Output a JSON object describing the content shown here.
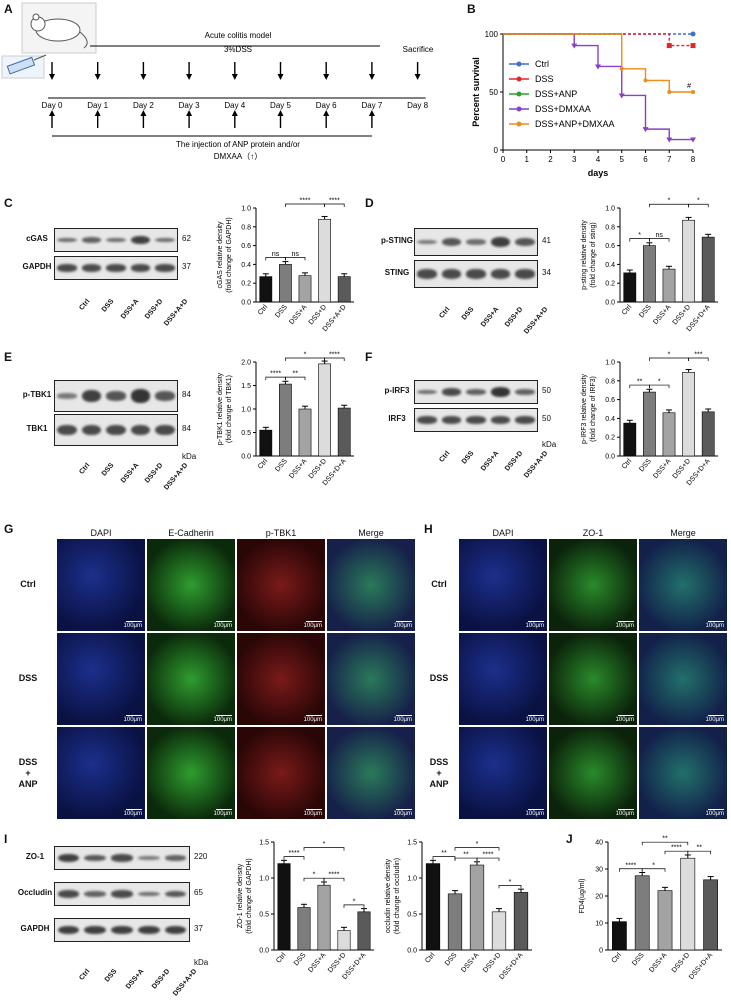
{
  "panelA": {
    "label": "A",
    "title": "Acute colitis model",
    "dss": "3%DSS",
    "sacrifice": "Sacrifice",
    "days": [
      "Day 0",
      "Day 1",
      "Day 2",
      "Day 3",
      "Day 4",
      "Day 5",
      "Day 6",
      "Day 7",
      "Day 8"
    ],
    "injection": "The injection of ANP protein and/or",
    "injection2": "DMXAA（↑）"
  },
  "panelB": {
    "label": "B"
  },
  "panelC": {
    "label": "C",
    "bands": [
      "cGAS",
      "GAPDH"
    ],
    "kda": [
      "62",
      "37"
    ],
    "lanes": [
      "Ctrl",
      "DSS",
      "DSS+A",
      "DSS+D",
      "DSS+A+D"
    ]
  },
  "panelD": {
    "label": "D",
    "bands": [
      "p-STING",
      "STING"
    ],
    "kda": [
      "41",
      "34"
    ],
    "lanes": [
      "Ctrl",
      "DSS",
      "DSS+A",
      "DSS+D",
      "DSS+A+D"
    ]
  },
  "panelE": {
    "label": "E",
    "bands": [
      "p-TBK1",
      "TBK1"
    ],
    "kda": [
      "84",
      "84"
    ],
    "unit": "kDa",
    "lanes": [
      "Ctrl",
      "DSS",
      "DSS+A",
      "DSS+D",
      "DSS+A+D"
    ]
  },
  "panelF": {
    "label": "F",
    "bands": [
      "p-IRF3",
      "IRF3"
    ],
    "kda": [
      "50",
      "50"
    ],
    "unit": "kDa",
    "lanes": [
      "Ctrl",
      "DSS",
      "DSS+A",
      "DSS+D",
      "DSS+A+D"
    ]
  },
  "panelG": {
    "label": "G",
    "cols": [
      "DAPI",
      "E-Cadherin",
      "p-TBK1",
      "Merge"
    ],
    "rows": [
      "Ctrl",
      "DSS",
      "DSS\n+\nANP"
    ],
    "scale": "100μm"
  },
  "panelH": {
    "label": "H",
    "cols": [
      "DAPI",
      "ZO-1",
      "Merge"
    ],
    "rows": [
      "Ctrl",
      "DSS",
      "DSS\n+\nANP"
    ],
    "scale": "100μm"
  },
  "panelI": {
    "label": "I",
    "bands": [
      "ZO-1",
      "Occludin",
      "GAPDH"
    ],
    "kda": [
      "220",
      "65",
      "37"
    ],
    "unit": "kDa",
    "lanes": [
      "Ctrl",
      "DSS",
      "DSS+A",
      "DSS+D",
      "DSS+A+D"
    ]
  },
  "panelJ": {
    "label": "J"
  },
  "chart_data": [
    {
      "id": "B",
      "type": "line",
      "xlabel": "days",
      "ylabel": "Percent survival",
      "xlim": [
        0,
        8
      ],
      "ylim": [
        0,
        100
      ],
      "xticks": [
        0,
        1,
        2,
        3,
        4,
        5,
        6,
        7,
        8
      ],
      "yticks": [
        0,
        50,
        100
      ],
      "annotation": "#",
      "series": [
        {
          "name": "Ctrl",
          "color": "#3b6fd1",
          "x": [
            0,
            8
          ],
          "y": [
            100,
            100
          ]
        },
        {
          "name": "DSS",
          "color": "#e0262c",
          "x": [
            0,
            6,
            7,
            8
          ],
          "y": [
            100,
            100,
            90,
            90
          ]
        },
        {
          "name": "DSS+ANP",
          "color": "#2aa02a",
          "x": [
            0,
            5
          ],
          "y": [
            100,
            100
          ]
        },
        {
          "name": "DSS+DMXAA",
          "color": "#8a3fc4",
          "x": [
            0,
            3,
            4,
            5,
            6,
            7,
            8
          ],
          "y": [
            100,
            90,
            72,
            47,
            18,
            9,
            9
          ]
        },
        {
          "name": "DSS+ANP+DMXAA",
          "color": "#f08a1a",
          "x": [
            0,
            5,
            6,
            7,
            8
          ],
          "y": [
            100,
            70,
            60,
            50,
            50
          ]
        }
      ]
    },
    {
      "id": "C",
      "type": "bar",
      "ylabel": "cGAS relative density\n(fold change of GAPDH)",
      "ylim": [
        0,
        1.0
      ],
      "yticks": [
        0.0,
        0.2,
        0.4,
        0.6,
        0.8,
        1.0
      ],
      "categories": [
        "Ctrl",
        "DSS",
        "DSS+A",
        "DSS+D",
        "DSS+A+D"
      ],
      "values": [
        0.27,
        0.4,
        0.28,
        0.88,
        0.27
      ],
      "sig": [
        {
          "a": 0,
          "b": 1,
          "t": "ns",
          "lvl": 0
        },
        {
          "a": 1,
          "b": 2,
          "t": "ns",
          "lvl": 0
        },
        {
          "a": 1,
          "b": 3,
          "t": "****",
          "lvl": 1
        },
        {
          "a": 3,
          "b": 4,
          "t": "****",
          "lvl": 1
        }
      ]
    },
    {
      "id": "D",
      "type": "bar",
      "ylabel": "p-sting relative density\n(fold change of sting)",
      "ylim": [
        0,
        1.0
      ],
      "yticks": [
        0.0,
        0.2,
        0.4,
        0.6,
        0.8,
        1.0
      ],
      "categories": [
        "Ctrl",
        "DSS",
        "DSS+A",
        "DSS+D",
        "DSS+D+A"
      ],
      "values": [
        0.31,
        0.6,
        0.35,
        0.87,
        0.69
      ],
      "sig": [
        {
          "a": 0,
          "b": 1,
          "t": "*",
          "lvl": 0
        },
        {
          "a": 1,
          "b": 2,
          "t": "ns",
          "lvl": 0
        },
        {
          "a": 1,
          "b": 3,
          "t": "*",
          "lvl": 1
        },
        {
          "a": 3,
          "b": 4,
          "t": "*",
          "lvl": 1
        }
      ]
    },
    {
      "id": "E",
      "type": "bar",
      "ylabel": "p-TBK1 relative density\n(fold change of TBK1)",
      "ylim": [
        0,
        2.0
      ],
      "yticks": [
        0.0,
        0.5,
        1.0,
        1.5,
        2.0
      ],
      "categories": [
        "Ctrl",
        "DSS",
        "DSS+A",
        "DSS+D",
        "DSS+D+A"
      ],
      "values": [
        0.55,
        1.53,
        1.0,
        1.96,
        1.02
      ],
      "sig": [
        {
          "a": 0,
          "b": 1,
          "t": "****",
          "lvl": 0
        },
        {
          "a": 1,
          "b": 2,
          "t": "**",
          "lvl": 0
        },
        {
          "a": 1,
          "b": 3,
          "t": "*",
          "lvl": 1
        },
        {
          "a": 3,
          "b": 4,
          "t": "****",
          "lvl": 1
        }
      ]
    },
    {
      "id": "F",
      "type": "bar",
      "ylabel": "p-IRF3 relative density\n(fold change of IRF3)",
      "ylim": [
        0,
        1.0
      ],
      "yticks": [
        0.0,
        0.2,
        0.4,
        0.6,
        0.8,
        1.0
      ],
      "categories": [
        "Ctrl",
        "DSS",
        "DSS+A",
        "DSS+D",
        "DSS+D+A"
      ],
      "values": [
        0.35,
        0.68,
        0.46,
        0.89,
        0.47
      ],
      "sig": [
        {
          "a": 0,
          "b": 1,
          "t": "**",
          "lvl": 0
        },
        {
          "a": 1,
          "b": 2,
          "t": "*",
          "lvl": 0
        },
        {
          "a": 1,
          "b": 3,
          "t": "*",
          "lvl": 1
        },
        {
          "a": 3,
          "b": 4,
          "t": "***",
          "lvl": 1
        }
      ]
    },
    {
      "id": "I1",
      "type": "bar",
      "ylabel": "ZO-1 relative density\n(fold change of GAPDH)",
      "ylim": [
        0,
        1.5
      ],
      "yticks": [
        0.0,
        0.5,
        1.0,
        1.5
      ],
      "categories": [
        "Ctrl",
        "DSS",
        "DSS+A",
        "DSS+D",
        "DSS+D+A"
      ],
      "values": [
        1.2,
        0.59,
        0.9,
        0.27,
        0.53
      ],
      "sig": [
        {
          "a": 0,
          "b": 1,
          "t": "****",
          "lvl": 0
        },
        {
          "a": 1,
          "b": 3,
          "t": "*",
          "lvl": 1
        },
        {
          "a": 1,
          "b": 2,
          "t": "*",
          "lvl": 0
        },
        {
          "a": 2,
          "b": 3,
          "t": "****",
          "lvl": 0
        },
        {
          "a": 3,
          "b": 4,
          "t": "*",
          "lvl": 0
        }
      ]
    },
    {
      "id": "I2",
      "type": "bar",
      "ylabel": "occludin relative density\n(fold change of occludin)",
      "ylim": [
        0,
        1.5
      ],
      "yticks": [
        0.0,
        0.5,
        1.0,
        1.5
      ],
      "categories": [
        "Ctrl",
        "DSS",
        "DSS+A",
        "DSS+D",
        "DSS+D+A"
      ],
      "values": [
        1.2,
        0.78,
        1.18,
        0.53,
        0.8
      ],
      "sig": [
        {
          "a": 0,
          "b": 1,
          "t": "**",
          "lvl": 0
        },
        {
          "a": 1,
          "b": 2,
          "t": "**",
          "lvl": 0
        },
        {
          "a": 1,
          "b": 3,
          "t": "*",
          "lvl": 1
        },
        {
          "a": 2,
          "b": 3,
          "t": "****",
          "lvl": 0
        },
        {
          "a": 3,
          "b": 4,
          "t": "*",
          "lvl": 0
        }
      ]
    },
    {
      "id": "J",
      "type": "bar",
      "ylabel": "FD4(ug/ml)",
      "ylim": [
        0,
        40
      ],
      "yticks": [
        0,
        10,
        20,
        30,
        40
      ],
      "categories": [
        "Ctrl",
        "DSS",
        "DSS+A",
        "DSS+D",
        "DSS+D+A"
      ],
      "values": [
        10.5,
        27.5,
        22,
        34,
        26
      ],
      "sig": [
        {
          "a": 0,
          "b": 1,
          "t": "****",
          "lvl": 0
        },
        {
          "a": 1,
          "b": 2,
          "t": "*",
          "lvl": 0
        },
        {
          "a": 1,
          "b": 3,
          "t": "**",
          "lvl": 1
        },
        {
          "a": 2,
          "b": 3,
          "t": "****",
          "lvl": 0
        },
        {
          "a": 3,
          "b": 4,
          "t": "**",
          "lvl": 0
        }
      ]
    }
  ]
}
